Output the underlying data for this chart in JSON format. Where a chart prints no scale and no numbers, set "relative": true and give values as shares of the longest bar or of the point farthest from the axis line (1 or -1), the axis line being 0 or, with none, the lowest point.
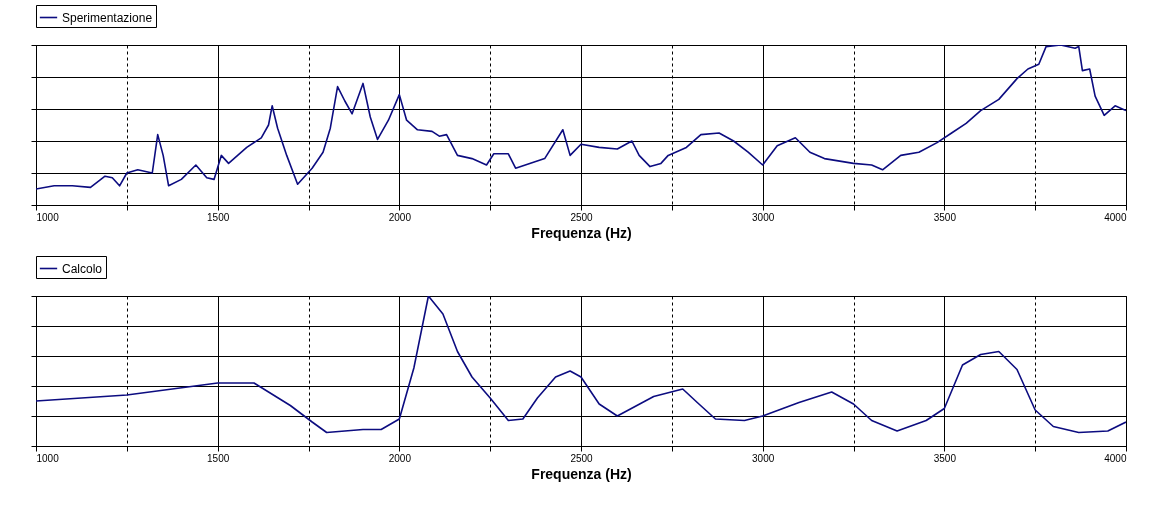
{
  "chart_data": [
    {
      "type": "line",
      "relative": true,
      "xlabel": "Frequenza (Hz)",
      "xlim": [
        1000,
        4000
      ],
      "xticks": [
        1000,
        {
          "value": 1250,
          "label": null
        },
        1500,
        {
          "value": 1750,
          "label": null
        },
        2000,
        {
          "value": 2250,
          "label": null
        },
        2500,
        {
          "value": 2750,
          "label": null
        },
        3000,
        {
          "value": 3250,
          "label": null
        },
        3500,
        {
          "value": 3750,
          "label": null
        },
        4000
      ],
      "grid": true,
      "legend": "top",
      "marker": "none",
      "line_style": "solid",
      "series": [
        {
          "name": "Sperimentazione",
          "color": "#0c0c80",
          "x": [
            1000,
            1050,
            1100,
            1150,
            1190,
            1210,
            1230,
            1250,
            1280,
            1320,
            1335,
            1350,
            1365,
            1400,
            1440,
            1470,
            1490,
            1510,
            1530,
            1580,
            1620,
            1640,
            1650,
            1665,
            1690,
            1720,
            1760,
            1790,
            1810,
            1830,
            1850,
            1870,
            1900,
            1920,
            1940,
            1970,
            2000,
            2020,
            2050,
            2090,
            2110,
            2130,
            2160,
            2200,
            2240,
            2260,
            2300,
            2320,
            2400,
            2450,
            2470,
            2500,
            2550,
            2600,
            2640,
            2660,
            2690,
            2720,
            2740,
            2790,
            2830,
            2880,
            2920,
            2960,
            3000,
            3040,
            3090,
            3130,
            3170,
            3250,
            3300,
            3330,
            3380,
            3430,
            3480,
            3520,
            3560,
            3600,
            3650,
            3700,
            3730,
            3760,
            3780,
            3820,
            3860,
            3870,
            3880,
            3900,
            3915,
            3940,
            3970,
            4000
          ],
          "values": [
            0.1,
            0.12,
            0.12,
            0.11,
            0.18,
            0.17,
            0.12,
            0.2,
            0.22,
            0.2,
            0.44,
            0.31,
            0.12,
            0.16,
            0.25,
            0.17,
            0.16,
            0.31,
            0.26,
            0.36,
            0.42,
            0.5,
            0.62,
            0.48,
            0.31,
            0.13,
            0.23,
            0.33,
            0.48,
            0.74,
            0.65,
            0.57,
            0.76,
            0.55,
            0.41,
            0.53,
            0.69,
            0.53,
            0.47,
            0.46,
            0.43,
            0.44,
            0.31,
            0.29,
            0.25,
            0.32,
            0.32,
            0.23,
            0.29,
            0.47,
            0.31,
            0.38,
            0.36,
            0.35,
            0.4,
            0.31,
            0.24,
            0.26,
            0.31,
            0.36,
            0.44,
            0.45,
            0.4,
            0.33,
            0.25,
            0.37,
            0.42,
            0.33,
            0.29,
            0.26,
            0.25,
            0.22,
            0.31,
            0.33,
            0.39,
            0.45,
            0.51,
            0.59,
            0.66,
            0.79,
            0.85,
            0.88,
            0.99,
            1,
            0.98,
            0.99,
            0.84,
            0.85,
            0.68,
            0.56,
            0.62,
            0.59
          ]
        }
      ]
    },
    {
      "type": "line",
      "relative": true,
      "xlabel": "Frequenza (Hz)",
      "xlim": [
        1000,
        4000
      ],
      "xticks": [
        1000,
        {
          "value": 1250,
          "label": null
        },
        1500,
        {
          "value": 1750,
          "label": null
        },
        2000,
        {
          "value": 2250,
          "label": null
        },
        2500,
        {
          "value": 2750,
          "label": null
        },
        3000,
        {
          "value": 3250,
          "label": null
        },
        3500,
        {
          "value": 3750,
          "label": null
        },
        4000
      ],
      "grid": true,
      "legend": "top",
      "marker": "none",
      "line_style": "solid",
      "series": [
        {
          "name": "Calcolo",
          "color": "#0c0c80",
          "x": [
            1000,
            1250,
            1500,
            1600,
            1700,
            1760,
            1800,
            1900,
            1950,
            2000,
            2040,
            2080,
            2120,
            2160,
            2200,
            2250,
            2300,
            2340,
            2380,
            2430,
            2470,
            2500,
            2550,
            2600,
            2700,
            2780,
            2820,
            2870,
            2950,
            3000,
            3100,
            3190,
            3250,
            3300,
            3370,
            3450,
            3500,
            3550,
            3600,
            3650,
            3700,
            3750,
            3800,
            3870,
            3950,
            4000
          ],
          "values": [
            0.3,
            0.34,
            0.42,
            0.42,
            0.27,
            0.16,
            0.09,
            0.11,
            0.11,
            0.18,
            0.52,
            1,
            0.88,
            0.63,
            0.46,
            0.32,
            0.17,
            0.18,
            0.32,
            0.46,
            0.5,
            0.46,
            0.28,
            0.2,
            0.33,
            0.38,
            0.29,
            0.18,
            0.17,
            0.2,
            0.29,
            0.36,
            0.28,
            0.17,
            0.1,
            0.17,
            0.25,
            0.54,
            0.61,
            0.63,
            0.51,
            0.24,
            0.13,
            0.09,
            0.1,
            0.16
          ]
        }
      ]
    }
  ]
}
